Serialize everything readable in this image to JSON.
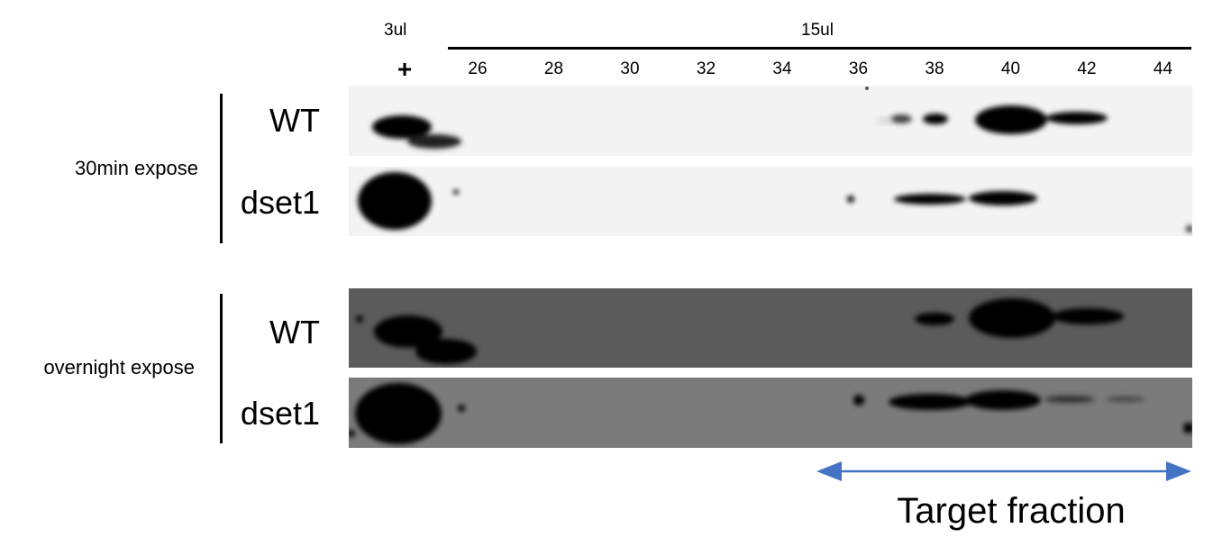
{
  "header": {
    "load_plus_volume": "3ul",
    "load_fraction_volume": "15ul",
    "plus_symbol": "+",
    "lanes": [
      "26",
      "28",
      "30",
      "32",
      "34",
      "36",
      "38",
      "40",
      "42",
      "44"
    ]
  },
  "groups": [
    {
      "label": "30min expose",
      "rows": [
        "WT",
        "dset1"
      ]
    },
    {
      "label": "overnight expose",
      "rows": [
        "WT",
        "dset1"
      ]
    }
  ],
  "target": {
    "label": "Target fraction",
    "arrow_color": "#4472c4"
  },
  "colors": {
    "blot_light": "#f2f2f2",
    "blot_dark_wt": "#5c5c5c",
    "blot_dark_dset1": "#7a7a7a",
    "band": "#000000"
  }
}
